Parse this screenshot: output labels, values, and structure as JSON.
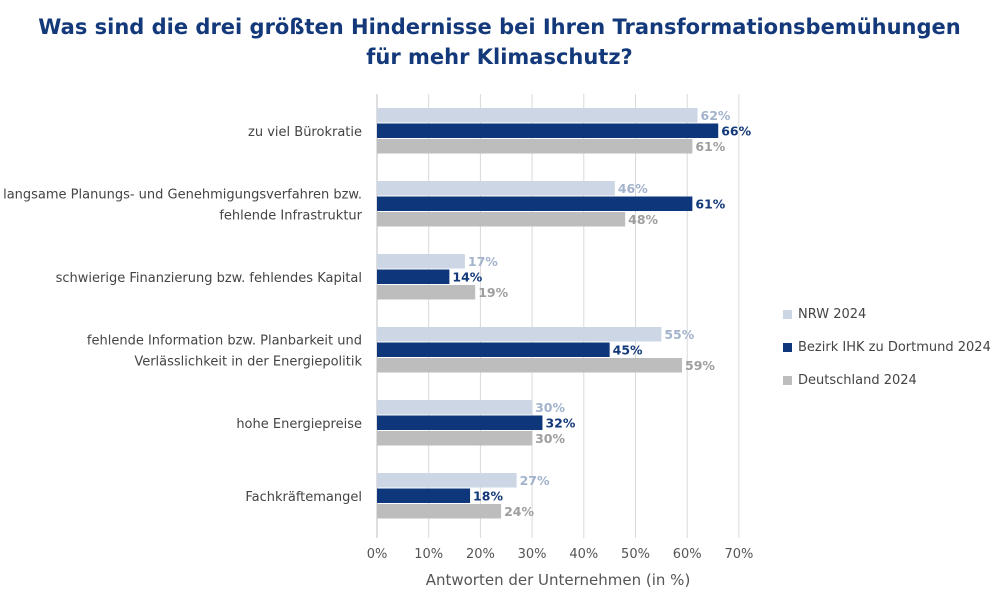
{
  "chart_data": {
    "type": "bar",
    "orientation": "horizontal",
    "title_lines": [
      "Was sind die drei größten Hindernisse bei Ihren Transformationsbemühungen",
      "für mehr Klimaschutz?"
    ],
    "xlabel": "Antworten der Unternehmen (in %)",
    "xlim": [
      0,
      70
    ],
    "xticks": [
      "0%",
      "10%",
      "20%",
      "30%",
      "40%",
      "50%",
      "60%",
      "70%"
    ],
    "grid": true,
    "legend_position": "right",
    "categories": [
      [
        "zu viel Bürokratie"
      ],
      [
        "langsame Planungs- und Genehmigungsverfahren bzw.",
        "fehlende Infrastruktur"
      ],
      [
        "schwierige Finanzierung bzw. fehlendes Kapital"
      ],
      [
        "fehlende Information bzw. Planbarkeit und",
        "Verlässlichkeit in der Energiepolitik"
      ],
      [
        "hohe Energiepreise"
      ],
      [
        "Fachkräftemangel"
      ]
    ],
    "series": [
      {
        "name": "NRW 2024",
        "color": "#ccd6e5",
        "label_color": "#a3b3cc",
        "values": [
          62,
          46,
          17,
          55,
          30,
          27
        ]
      },
      {
        "name": "Bezirk IHK zu Dortmund 2024",
        "color": "#0e367a",
        "label_color": "#13397a",
        "values": [
          66,
          61,
          14,
          45,
          32,
          18
        ]
      },
      {
        "name": "Deutschland 2024",
        "color": "#bdbdbd",
        "label_color": "#9e9e9e",
        "values": [
          61,
          48,
          19,
          59,
          30,
          24
        ]
      }
    ]
  }
}
